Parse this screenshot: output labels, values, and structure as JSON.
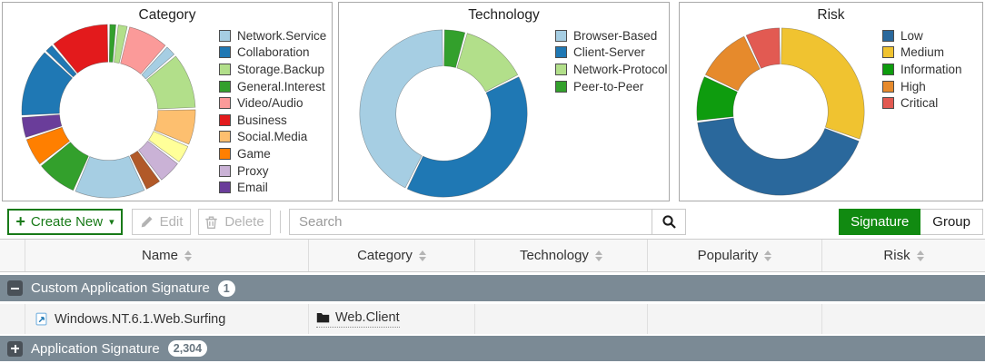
{
  "chart_data": [
    {
      "type": "donut",
      "title": "Category",
      "legend_position": "right",
      "segments": [
        {
          "label": "",
          "color": "#33a02c",
          "value": 1.2
        },
        {
          "label": "",
          "color": "#b2df8a",
          "value": 1.8
        },
        {
          "label": "Video/Audio",
          "color": "#fb9a99",
          "value": 8
        },
        {
          "label": "",
          "color": "#a6cee3",
          "value": 2
        },
        {
          "label": "Storage.Backup",
          "color": "#b2df8a",
          "value": 11
        },
        {
          "label": "Social.Media",
          "color": "#fdbf6f",
          "value": 7
        },
        {
          "label": "",
          "color": "#ffff99",
          "value": 3.5
        },
        {
          "label": "Proxy",
          "color": "#cab2d6",
          "value": 4.5
        },
        {
          "label": "",
          "color": "#b15928",
          "value": 3
        },
        {
          "label": "Network.Service",
          "color": "#a6cee3",
          "value": 14
        },
        {
          "label": "General.Interest",
          "color": "#33a02c",
          "value": 8
        },
        {
          "label": "Game",
          "color": "#ff7f00",
          "value": 5.5
        },
        {
          "label": "Email",
          "color": "#6a3d9a",
          "value": 4
        },
        {
          "label": "Collaboration",
          "color": "#1f78b4",
          "value": 13.5
        },
        {
          "label": "",
          "color": "#1f78b4",
          "value": 1.5
        },
        {
          "label": "Business",
          "color": "#e31a1c",
          "value": 11.5
        }
      ],
      "legend": [
        {
          "label": "Network.Service",
          "color": "#a6cee3"
        },
        {
          "label": "Collaboration",
          "color": "#1f78b4"
        },
        {
          "label": "Storage.Backup",
          "color": "#b2df8a"
        },
        {
          "label": "General.Interest",
          "color": "#33a02c"
        },
        {
          "label": "Video/Audio",
          "color": "#fb9a99"
        },
        {
          "label": "Business",
          "color": "#e31a1c"
        },
        {
          "label": "Social.Media",
          "color": "#fdbf6f"
        },
        {
          "label": "Game",
          "color": "#ff7f00"
        },
        {
          "label": "Proxy",
          "color": "#cab2d6"
        },
        {
          "label": "Email",
          "color": "#6a3d9a"
        }
      ]
    },
    {
      "type": "donut",
      "title": "Technology",
      "legend_position": "right",
      "segments": [
        {
          "label": "Peer-to-Peer",
          "color": "#33a02c",
          "value": 4
        },
        {
          "label": "Network-Protocol",
          "color": "#b2df8a",
          "value": 13
        },
        {
          "label": "Client-Server",
          "color": "#1f78b4",
          "value": 40
        },
        {
          "label": "Browser-Based",
          "color": "#a6cee3",
          "value": 43
        }
      ],
      "legend": [
        {
          "label": "Browser-Based",
          "color": "#a6cee3"
        },
        {
          "label": "Client-Server",
          "color": "#1f78b4"
        },
        {
          "label": "Network-Protocol",
          "color": "#b2df8a"
        },
        {
          "label": "Peer-to-Peer",
          "color": "#33a02c"
        }
      ]
    },
    {
      "type": "donut",
      "title": "Risk",
      "legend_position": "right",
      "segments": [
        {
          "label": "Medium",
          "color": "#f0c330",
          "value": 30
        },
        {
          "label": "Low",
          "color": "#2a689c",
          "value": 42
        },
        {
          "label": "Information",
          "color": "#0e9c0e",
          "value": 8.5
        },
        {
          "label": "High",
          "color": "#e68a2c",
          "value": 10.5
        },
        {
          "label": "Critical",
          "color": "#e25a52",
          "value": 6.5
        }
      ],
      "legend": [
        {
          "label": "Low",
          "color": "#2a689c"
        },
        {
          "label": "Medium",
          "color": "#f0c330"
        },
        {
          "label": "Information",
          "color": "#0e9c0e"
        },
        {
          "label": "High",
          "color": "#e68a2c"
        },
        {
          "label": "Critical",
          "color": "#e25a52"
        }
      ]
    }
  ],
  "toolbar": {
    "create_new_label": "Create New",
    "edit_label": "Edit",
    "delete_label": "Delete",
    "search_placeholder": "Search",
    "signature_label": "Signature",
    "group_label": "Group"
  },
  "table": {
    "columns": [
      {
        "label": "Name"
      },
      {
        "label": "Category"
      },
      {
        "label": "Technology"
      },
      {
        "label": "Popularity"
      },
      {
        "label": "Risk"
      }
    ],
    "group1": {
      "name": "Custom Application Signature",
      "count": "1"
    },
    "row1": {
      "name": "Windows.NT.6.1.Web.Surfing",
      "category": "Web.Client"
    },
    "group2": {
      "name": "Application Signature",
      "count": "2,304"
    }
  },
  "colors": {
    "accent_green": "#187a18",
    "toggle_active_green": "#118a11",
    "group_row_slate": "#7b8a95"
  },
  "icons": {
    "create_new": "plus-icon",
    "create_new_menu": "caret-down-icon",
    "edit": "pencil-icon",
    "delete": "trash-icon",
    "search": "magnifier-icon",
    "collapse_group": "minus-box-icon",
    "expand_group": "plus-box-icon",
    "signature_row": "custom-signature-icon",
    "category_cell": "folder-icon",
    "column_sort": "sort-arrows-icon"
  }
}
